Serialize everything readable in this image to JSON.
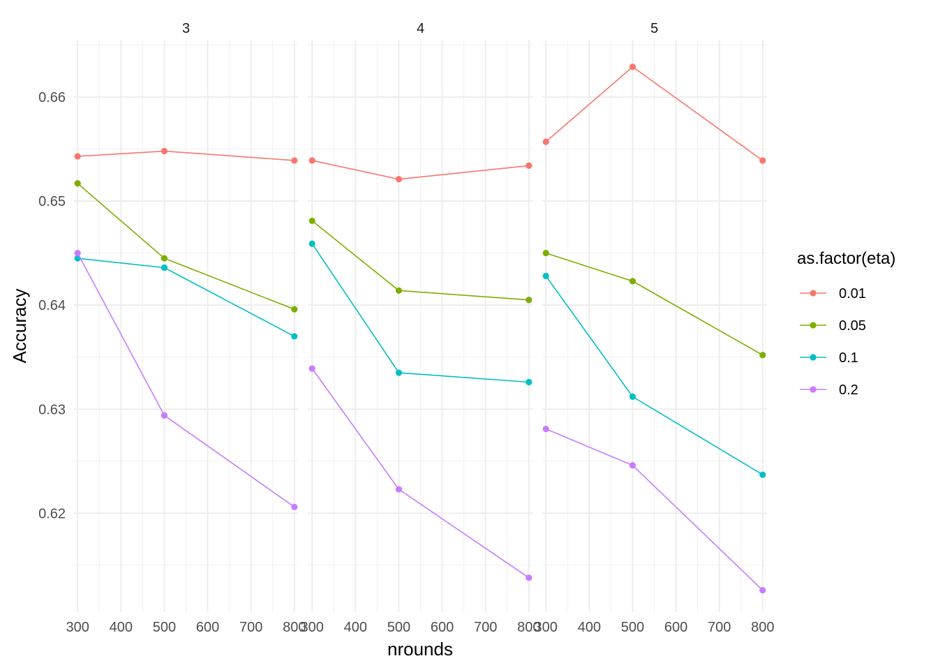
{
  "chart_data": {
    "type": "line",
    "xlabel": "nrounds",
    "ylabel": "Accuracy",
    "x_ticks": [
      300,
      400,
      500,
      600,
      700,
      800
    ],
    "y_ticks": [
      0.62,
      0.63,
      0.64,
      0.65,
      0.66
    ],
    "y_tick_labels": [
      "0.62",
      "0.63",
      "0.64",
      "0.65",
      "0.66"
    ],
    "xlim": [
      290,
      810
    ],
    "ylim": [
      0.6105,
      0.6655
    ],
    "grid": true,
    "legend": {
      "title": "as.factor(eta)",
      "position": "right",
      "entries": [
        {
          "label": "0.01",
          "color": "#F8766D"
        },
        {
          "label": "0.05",
          "color": "#7CAE00"
        },
        {
          "label": "0.1",
          "color": "#00BFC4"
        },
        {
          "label": "0.2",
          "color": "#C77CFF"
        }
      ]
    },
    "panels": [
      {
        "label": "3",
        "series": [
          {
            "name": "0.01",
            "x": [
              300,
              500,
              800
            ],
            "y": [
              0.6543,
              0.6548,
              0.6539
            ]
          },
          {
            "name": "0.05",
            "x": [
              300,
              500,
              800
            ],
            "y": [
              0.6517,
              0.6445,
              0.6396
            ]
          },
          {
            "name": "0.1",
            "x": [
              300,
              500,
              800
            ],
            "y": [
              0.6445,
              0.6436,
              0.637
            ]
          },
          {
            "name": "0.2",
            "x": [
              300,
              500,
              800
            ],
            "y": [
              0.645,
              0.6294,
              0.6206
            ]
          }
        ]
      },
      {
        "label": "4",
        "series": [
          {
            "name": "0.01",
            "x": [
              300,
              500,
              800
            ],
            "y": [
              0.6539,
              0.6521,
              0.6534
            ]
          },
          {
            "name": "0.05",
            "x": [
              300,
              500,
              800
            ],
            "y": [
              0.6481,
              0.6414,
              0.6405
            ]
          },
          {
            "name": "0.1",
            "x": [
              300,
              500,
              800
            ],
            "y": [
              0.6459,
              0.6335,
              0.6326
            ]
          },
          {
            "name": "0.2",
            "x": [
              300,
              500,
              800
            ],
            "y": [
              0.6339,
              0.6223,
              0.6138
            ]
          }
        ]
      },
      {
        "label": "5",
        "series": [
          {
            "name": "0.01",
            "x": [
              300,
              500,
              800
            ],
            "y": [
              0.6557,
              0.6629,
              0.6539
            ]
          },
          {
            "name": "0.05",
            "x": [
              300,
              500,
              800
            ],
            "y": [
              0.645,
              0.6423,
              0.6352
            ]
          },
          {
            "name": "0.1",
            "x": [
              300,
              500,
              800
            ],
            "y": [
              0.6428,
              0.6312,
              0.6237
            ]
          },
          {
            "name": "0.2",
            "x": [
              300,
              500,
              800
            ],
            "y": [
              0.6281,
              0.6246,
              0.6126
            ]
          }
        ]
      }
    ]
  }
}
